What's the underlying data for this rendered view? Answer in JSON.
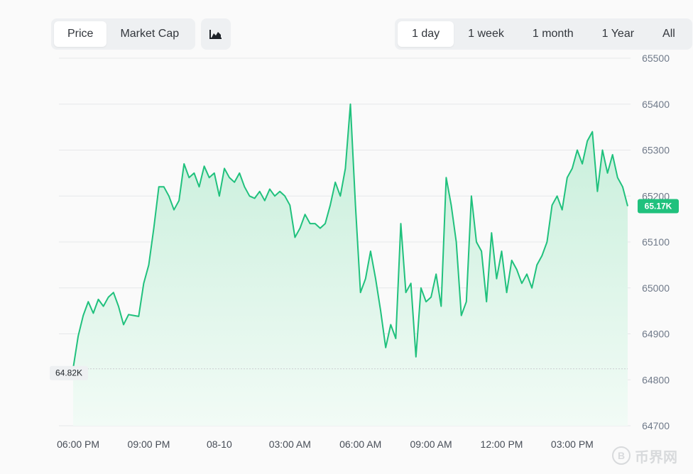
{
  "type_tabs": [
    {
      "label": "Price",
      "active": true
    },
    {
      "label": "Market Cap",
      "active": false
    }
  ],
  "chart_toggle_icon": "area-chart-icon",
  "range_tabs": [
    {
      "label": "1 day",
      "active": true
    },
    {
      "label": "1 week",
      "active": false
    },
    {
      "label": "1 month",
      "active": false
    },
    {
      "label": "1 Year",
      "active": false
    },
    {
      "label": "All",
      "active": false
    }
  ],
  "colors": {
    "line": "#20c17d",
    "fill_top": "#c5eed9",
    "fill_bottom": "#f2fbf6",
    "grid": "#e6e8ea",
    "badge": "#20c17d"
  },
  "watermark": {
    "icon": "coin-b-icon",
    "glyph": "B",
    "text": "币界网"
  },
  "chart_data": {
    "type": "area",
    "title": "",
    "xlabel": "",
    "ylabel": "",
    "ylim": [
      64700,
      65500
    ],
    "yticks": [
      65500,
      65400,
      65300,
      65200,
      65100,
      65000,
      64900,
      64800,
      64700
    ],
    "xticks": [
      {
        "label": "06:00 PM",
        "t": 1
      },
      {
        "label": "09:00 PM",
        "t": 15
      },
      {
        "label": "08-10",
        "t": 29
      },
      {
        "label": "03:00 AM",
        "t": 43
      },
      {
        "label": "06:00 AM",
        "t": 57
      },
      {
        "label": "09:00 AM",
        "t": 71
      },
      {
        "label": "12:00 PM",
        "t": 85
      },
      {
        "label": "03:00 PM",
        "t": 99
      }
    ],
    "open_label": "64.82K",
    "open_value": 64824,
    "last_label": "65.17K",
    "last_value": 65178,
    "grid": true,
    "y_axis_position": "right",
    "x_start_index": 0,
    "values": [
      64825,
      64895,
      64940,
      64970,
      64945,
      64975,
      64960,
      64980,
      64990,
      64960,
      64920,
      64942,
      64940,
      64938,
      65010,
      65050,
      65130,
      65220,
      65220,
      65200,
      65170,
      65190,
      65270,
      65240,
      65250,
      65220,
      65265,
      65240,
      65250,
      65200,
      65260,
      65240,
      65230,
      65250,
      65220,
      65200,
      65195,
      65210,
      65190,
      65215,
      65200,
      65210,
      65200,
      65180,
      65110,
      65130,
      65160,
      65140,
      65140,
      65130,
      65140,
      65180,
      65230,
      65200,
      65260,
      65400,
      65180,
      64990,
      65020,
      65080,
      65020,
      64950,
      64870,
      64920,
      64890,
      65140,
      64990,
      65010,
      64850,
      65000,
      64970,
      64980,
      65030,
      64960,
      65240,
      65180,
      65100,
      64940,
      64970,
      65200,
      65100,
      65080,
      64970,
      65120,
      65020,
      65080,
      64990,
      65060,
      65040,
      65010,
      65030,
      65000,
      65050,
      65070,
      65100,
      65180,
      65200,
      65170,
      65240,
      65260,
      65300,
      65270,
      65320,
      65340,
      65210,
      65300,
      65250,
      65290,
      65240,
      65220,
      65178
    ]
  }
}
